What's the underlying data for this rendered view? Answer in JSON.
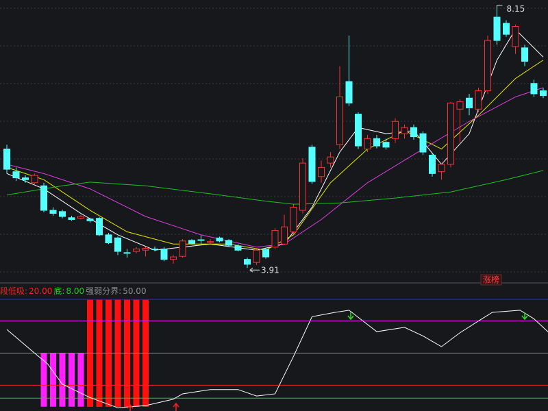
{
  "chart_data": [
    {
      "type": "candlestick",
      "up_color": "#ff3232",
      "down_color": "#54ffff",
      "ylim": [
        3.7,
        8.28
      ],
      "open": [
        5.85,
        5.48,
        5.38,
        5.3,
        5.25,
        4.85,
        4.83,
        4.73,
        4.72,
        4.71,
        4.72,
        4.45,
        4.4,
        4.16,
        4.18,
        4.2,
        4.22,
        4.22,
        4.05,
        4.1,
        4.36,
        4.37,
        4.33,
        4.4,
        4.36,
        4.27,
        4.05,
        4.0,
        4.21,
        4.25,
        4.3,
        4.5,
        4.85,
        5.88,
        5.4,
        5.62,
        5.92,
        6.95,
        6.42,
        5.85,
        6.02,
        5.96,
        6.02,
        6.1,
        6.2,
        6.1,
        5.75,
        5.48,
        5.6,
        6.5,
        6.68,
        6.5,
        6.8,
        8.0,
        7.9,
        7.52,
        7.5,
        6.92,
        6.8
      ],
      "high": [
        5.92,
        5.55,
        5.42,
        5.45,
        5.3,
        4.9,
        4.86,
        4.76,
        4.78,
        4.73,
        4.74,
        4.48,
        4.42,
        4.22,
        4.25,
        4.26,
        4.26,
        4.25,
        4.12,
        4.38,
        4.38,
        4.44,
        4.38,
        4.42,
        4.38,
        4.3,
        4.08,
        4.22,
        4.24,
        4.56,
        4.78,
        4.96,
        5.7,
        5.92,
        5.66,
        5.8,
        7.2,
        7.7,
        6.45,
        6.08,
        6.08,
        6.02,
        6.35,
        6.25,
        6.25,
        6.14,
        5.78,
        5.62,
        6.62,
        6.66,
        6.75,
        6.85,
        7.7,
        8.15,
        7.95,
        7.88,
        7.55,
        6.98,
        6.85
      ],
      "low": [
        5.45,
        5.33,
        5.3,
        5.28,
        4.82,
        4.76,
        4.72,
        4.68,
        4.7,
        4.65,
        4.43,
        4.3,
        4.12,
        4.08,
        4.15,
        4.1,
        4.18,
        4.02,
        3.98,
        4.08,
        4.29,
        4.3,
        4.3,
        4.33,
        4.26,
        4.18,
        3.91,
        3.96,
        4.06,
        4.22,
        4.28,
        4.46,
        4.8,
        5.28,
        5.3,
        5.55,
        5.85,
        6.55,
        5.85,
        5.8,
        5.86,
        5.84,
        5.95,
        6.02,
        6.0,
        5.75,
        5.4,
        5.35,
        5.55,
        5.95,
        6.4,
        6.45,
        6.75,
        7.55,
        7.68,
        7.4,
        7.2,
        6.7,
        6.68
      ],
      "close": [
        5.52,
        5.38,
        5.35,
        5.42,
        4.85,
        4.8,
        4.75,
        4.7,
        4.75,
        4.68,
        4.45,
        4.32,
        4.18,
        4.15,
        4.22,
        4.23,
        4.21,
        4.05,
        4.09,
        4.35,
        4.31,
        4.36,
        4.34,
        4.35,
        4.28,
        4.2,
        3.97,
        4.2,
        4.09,
        4.52,
        4.58,
        4.9,
        5.62,
        5.32,
        5.55,
        5.72,
        6.7,
        6.6,
        5.9,
        6.02,
        5.9,
        5.88,
        6.3,
        6.2,
        6.05,
        5.8,
        5.45,
        5.6,
        6.6,
        6.62,
        6.52,
        6.8,
        7.62,
        7.62,
        7.72,
        7.85,
        7.28,
        6.75,
        6.72
      ],
      "series": [
        {
          "color": "#ffffff",
          "x": [
            0,
            4,
            8,
            12,
            16,
            22,
            27,
            30,
            33,
            36,
            38,
            41,
            44,
            47,
            50,
            53,
            55,
            58
          ],
          "values": [
            5.45,
            5.2,
            4.8,
            4.45,
            4.2,
            4.3,
            4.2,
            4.3,
            4.9,
            5.8,
            6.2,
            6.1,
            6.15,
            5.6,
            6.1,
            7.3,
            7.8,
            7.35
          ]
        },
        {
          "color": "#e8e800",
          "x": [
            0,
            4,
            9,
            13,
            18,
            24,
            28,
            31,
            35,
            39,
            43,
            47,
            51,
            55,
            58
          ],
          "values": [
            5.55,
            5.35,
            4.85,
            4.5,
            4.3,
            4.3,
            4.2,
            4.45,
            5.3,
            5.85,
            6.15,
            5.85,
            6.4,
            7.0,
            7.3
          ]
        },
        {
          "color": "#e040e0",
          "x": [
            0,
            4,
            9,
            15,
            21,
            27,
            30,
            34,
            39,
            45,
            50,
            55,
            58
          ],
          "values": [
            5.6,
            5.45,
            5.2,
            4.75,
            4.45,
            4.25,
            4.3,
            4.7,
            5.3,
            5.85,
            6.3,
            6.7,
            6.85
          ]
        },
        {
          "color": "#22c022",
          "x": [
            0,
            6,
            9,
            15,
            22,
            28,
            31,
            36,
            42,
            48,
            54,
            58
          ],
          "values": [
            5.1,
            5.25,
            5.31,
            5.25,
            5.12,
            5.0,
            4.95,
            4.97,
            5.05,
            5.15,
            5.35,
            5.5
          ]
        }
      ],
      "annotations": [
        {
          "x": 53,
          "y": 8.15
        },
        {
          "x": 26,
          "y": 3.91
        }
      ],
      "badge": "涨榜"
    },
    {
      "type": "indicator",
      "ylim": [
        -4,
        111
      ],
      "levels": [
        {
          "name": "段低吸:",
          "value": {
            "value": 20,
            "label": "20.00"
          },
          "color": "#ff2020"
        },
        {
          "name": "底:",
          "value": {
            "value": 8,
            "label": "8.00"
          },
          "color": "#20d020"
        },
        {
          "name": "强弱分界:",
          "value": {
            "value": 50,
            "label": "50.00"
          },
          "color": "#909090"
        }
      ],
      "guides": [
        {
          "value": 100,
          "color": "#2020ff"
        },
        {
          "value": 80,
          "color": "#e020e0"
        }
      ],
      "line": {
        "color": "#ffffff",
        "x": [
          0,
          3,
          4.4,
          6,
          9,
          12,
          15,
          18,
          19,
          22,
          25,
          27,
          29,
          31,
          33,
          35.5,
          37,
          38.5,
          40,
          43,
          45,
          47,
          49,
          51,
          52.5,
          55.5,
          57,
          59
        ],
        "values": [
          72,
          50,
          40,
          21,
          8.5,
          -1,
          1,
          7,
          12,
          16,
          16,
          10,
          12,
          47,
          84,
          88,
          90,
          80,
          70,
          74,
          66,
          56,
          69,
          80,
          88,
          90,
          82,
          66
        ]
      },
      "bars": [
        {
          "color": "#ff20ff",
          "x": [
            4,
            5,
            6,
            7,
            8,
            9,
            10,
            11,
            12,
            13,
            14,
            15
          ],
          "values": [
            50,
            50,
            50,
            50,
            50,
            50,
            50,
            50,
            50,
            50,
            50,
            50
          ]
        },
        {
          "color": "#ff1010",
          "x": [
            9,
            10,
            11,
            12,
            13,
            14,
            15
          ],
          "values": [
            100,
            100,
            100,
            100,
            100,
            100,
            100
          ]
        }
      ]
    }
  ]
}
